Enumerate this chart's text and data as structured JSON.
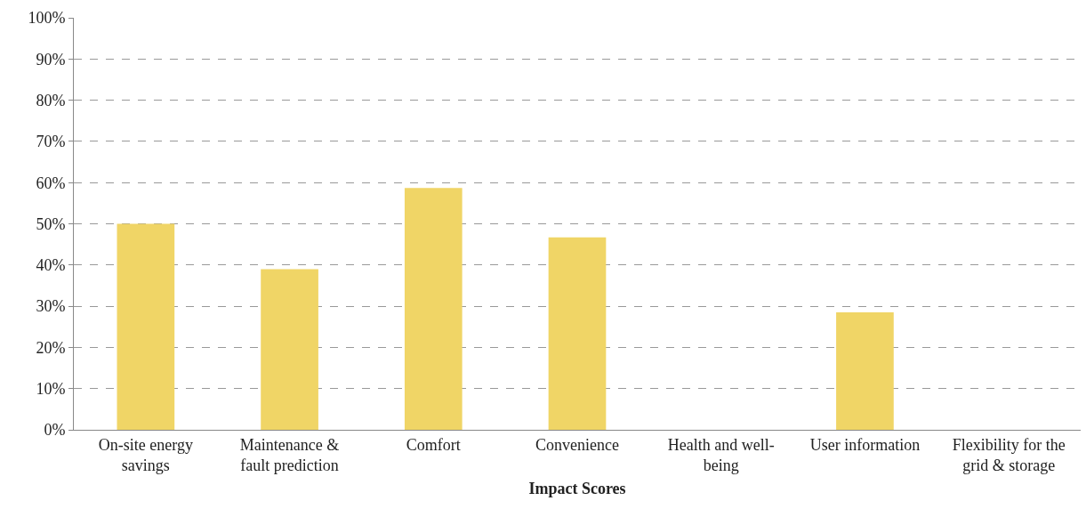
{
  "chart_data": {
    "type": "bar",
    "xlabel": "Impact Scores",
    "categories": [
      "On-site energy\nsavings",
      "Maintenance &\nfault prediction",
      "Comfort",
      "Convenience",
      "Health and well-\nbeing",
      "User information",
      "Flexibility for the\ngrid & storage"
    ],
    "values": [
      50,
      39,
      58.7,
      46.7,
      0,
      28.5,
      0
    ],
    "color": "#f0d566",
    "ylim": [
      0,
      100
    ],
    "yticks": [
      {
        "value": 0,
        "label": "0%"
      },
      {
        "value": 10,
        "label": "10%"
      },
      {
        "value": 20,
        "label": "20%"
      },
      {
        "value": 30,
        "label": "30%"
      },
      {
        "value": 40,
        "label": "40%"
      },
      {
        "value": 50,
        "label": "50%"
      },
      {
        "value": 60,
        "label": "60%"
      },
      {
        "value": 70,
        "label": "70%"
      },
      {
        "value": 80,
        "label": "80%"
      },
      {
        "value": 90,
        "label": "90%"
      },
      {
        "value": 100,
        "label": "100%"
      }
    ],
    "grid": "y",
    "legend": false
  }
}
